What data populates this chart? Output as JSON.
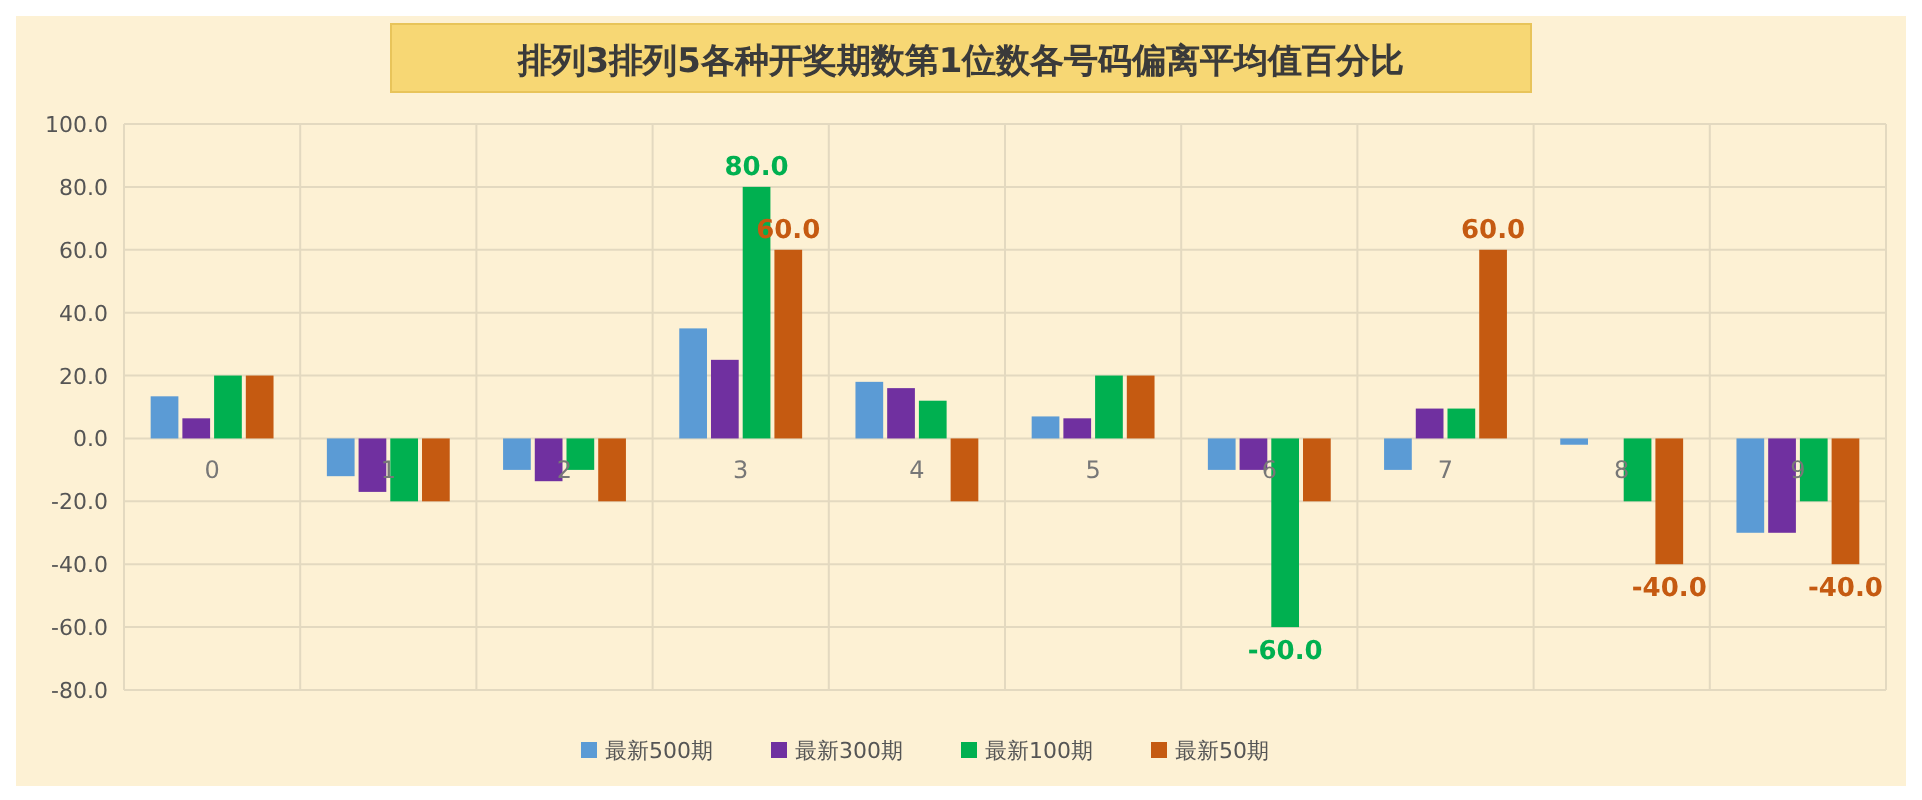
{
  "chart_data": {
    "type": "bar",
    "title": "排列3排列5各种开奖期数第1位数各号码偏离平均值百分比",
    "categories": [
      "0",
      "1",
      "2",
      "3",
      "4",
      "5",
      "6",
      "7",
      "8",
      "9"
    ],
    "series": [
      {
        "name": "最新500期",
        "color": "#5b9bd5",
        "values": [
          13.4,
          -12,
          -10,
          35,
          18,
          7,
          -10,
          -10,
          -2,
          -30
        ]
      },
      {
        "name": "最新300期",
        "color": "#7030a0",
        "values": [
          6.4,
          -17,
          -13.6,
          25,
          16,
          6.4,
          -10,
          9.5,
          0,
          -30
        ]
      },
      {
        "name": "最新100期",
        "color": "#00b050",
        "values": [
          20,
          -20,
          -10,
          80,
          12,
          20,
          -60,
          9.5,
          -20,
          -20
        ],
        "value_labels": [
          null,
          null,
          null,
          "80.0",
          null,
          null,
          "-60.0",
          null,
          null,
          null
        ]
      },
      {
        "name": "最新50期",
        "color": "#c55a11",
        "values": [
          20,
          -20,
          -20,
          60,
          -20,
          20,
          -20,
          60,
          -40,
          -40
        ],
        "value_labels": [
          null,
          null,
          null,
          "60.0",
          null,
          null,
          null,
          "60.0",
          "-40.0",
          "-40.0"
        ]
      }
    ],
    "ylim": [
      -80,
      100
    ],
    "yticks": [
      {
        "value": -80,
        "label": "-80.0"
      },
      {
        "value": -60,
        "label": "-60.0"
      },
      {
        "value": -40,
        "label": "-40.0"
      },
      {
        "value": -20,
        "label": "-20.0"
      },
      {
        "value": 0,
        "label": "0.0"
      },
      {
        "value": 20,
        "label": "20.0"
      },
      {
        "value": 40,
        "label": "40.0"
      },
      {
        "value": 60,
        "label": "60.0"
      },
      {
        "value": 80,
        "label": "80.0"
      },
      {
        "value": 100,
        "label": "100.0"
      }
    ],
    "grid": true,
    "legend": "bottom"
  }
}
